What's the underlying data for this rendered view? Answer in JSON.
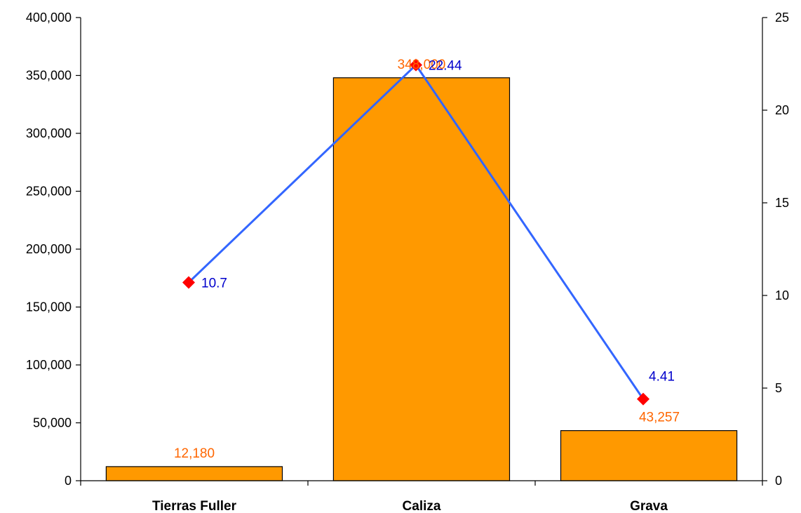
{
  "chart_data": {
    "type": "bar",
    "categories": [
      "Tierras Fuller",
      "Caliza",
      "Grava"
    ],
    "series": [
      {
        "kind": "bar",
        "axis": "left",
        "values": [
          12180,
          348000,
          43257
        ],
        "labels": [
          "12,180",
          "348,000",
          "43,257"
        ],
        "color": "#ff9900",
        "label_color": "#ff6600"
      },
      {
        "kind": "line",
        "axis": "right",
        "values": [
          10.7,
          22.44,
          4.41
        ],
        "labels": [
          "10.7",
          "22.44",
          "4.41"
        ],
        "color": "#3366ff",
        "marker_color": "#ff0000",
        "label_color": "#0000cc"
      }
    ],
    "y_left": {
      "ylim": [
        0,
        400000
      ],
      "ticks": [
        0,
        50000,
        100000,
        150000,
        200000,
        250000,
        300000,
        350000,
        400000
      ],
      "tick_labels": [
        "0",
        "50,000",
        "100,000",
        "150,000",
        "200,000",
        "250,000",
        "300,000",
        "350,000",
        "400,000"
      ]
    },
    "y_right": {
      "ylim": [
        0,
        25
      ],
      "ticks": [
        0,
        5,
        10,
        15,
        20,
        25
      ],
      "tick_labels": [
        "0",
        "5",
        "10",
        "15",
        "20",
        "25"
      ]
    },
    "grid": false,
    "legend": "none"
  }
}
